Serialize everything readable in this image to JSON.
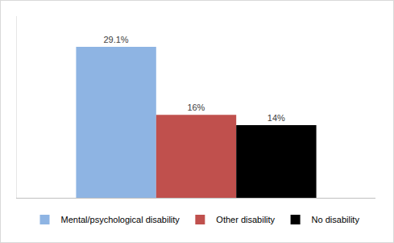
{
  "chart_data": {
    "type": "bar",
    "categories": [
      null
    ],
    "series": [
      {
        "name": "Mental/psychological disability",
        "color": "#8eb4e3",
        "values": [
          29.1
        ],
        "value_labels": [
          "29.1%"
        ]
      },
      {
        "name": "Other disability",
        "color": "#c0504d",
        "values": [
          16
        ],
        "value_labels": [
          "16%"
        ]
      },
      {
        "name": "No disability",
        "color": "#000000",
        "values": [
          14
        ],
        "value_labels": [
          "14%"
        ]
      }
    ],
    "ylim": [
      0,
      35
    ],
    "yticks": [],
    "grid": false,
    "legend": "bottom",
    "data_labels": true,
    "tick_labels": false
  }
}
